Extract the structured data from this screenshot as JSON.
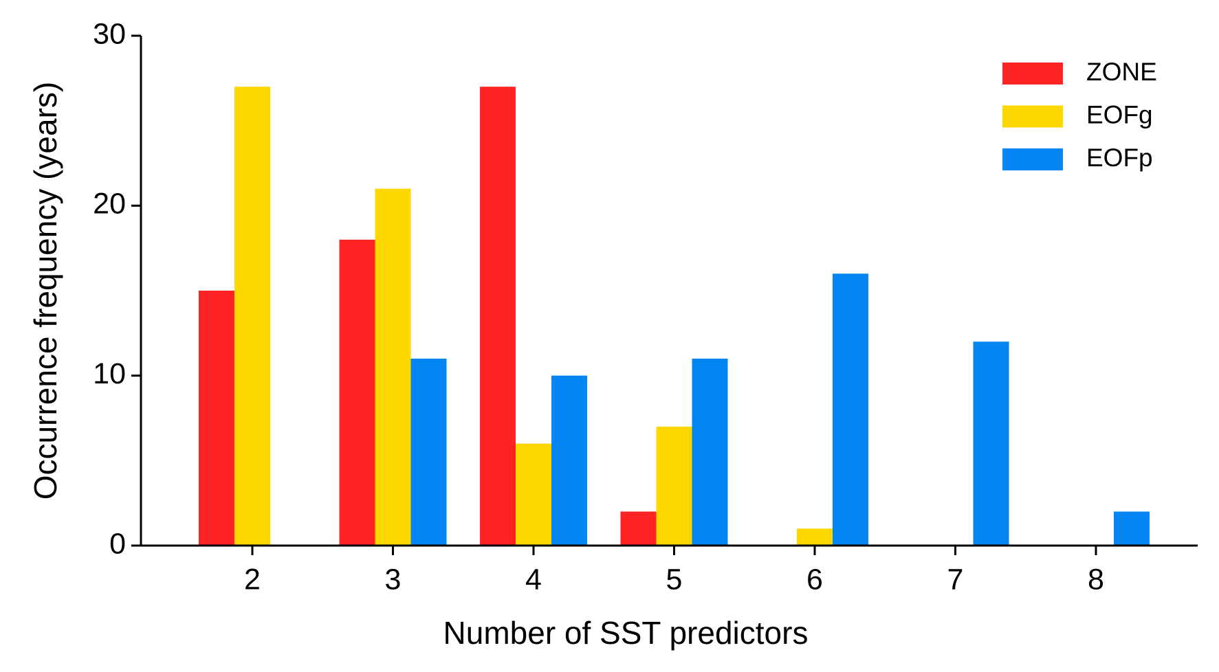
{
  "chart_data": {
    "type": "bar",
    "x_label": "Number of SST predictors",
    "y_label": "Occurrence frequency (years)",
    "categories": [
      2,
      3,
      4,
      5,
      6,
      7,
      8
    ],
    "series": [
      {
        "name": "ZONE",
        "color": "#ff2424",
        "values": [
          15,
          18,
          27,
          2,
          0,
          0,
          0
        ]
      },
      {
        "name": "EOFg",
        "color": "#ffd700",
        "values": [
          27,
          21,
          6,
          7,
          1,
          0,
          0
        ]
      },
      {
        "name": "EOFp",
        "color": "#0585f2",
        "values": [
          0,
          11,
          10,
          11,
          16,
          12,
          2
        ]
      }
    ],
    "ylim": [
      0,
      30
    ],
    "yticks": [
      0,
      10,
      20,
      30
    ],
    "legend": "upper right"
  }
}
